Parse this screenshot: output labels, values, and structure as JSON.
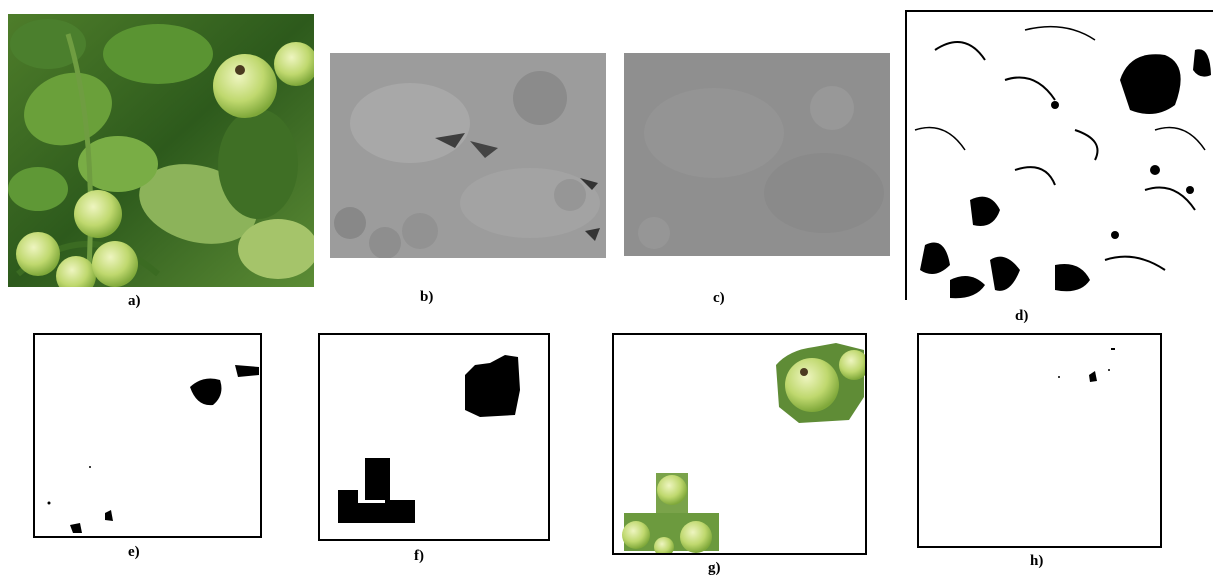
{
  "figure": {
    "panels": [
      {
        "id": "a",
        "caption": "a)",
        "content": "original tomato plant photo"
      },
      {
        "id": "b",
        "caption": "b)",
        "content": "grayscale channel"
      },
      {
        "id": "c",
        "caption": "c)",
        "content": "grayscale channel"
      },
      {
        "id": "d",
        "caption": "d)",
        "content": "binary thresholded image"
      },
      {
        "id": "e",
        "caption": "e)",
        "content": "filtered binary mask"
      },
      {
        "id": "f",
        "caption": "f)",
        "content": "dilated region mask"
      },
      {
        "id": "g",
        "caption": "g)",
        "content": "segmented tomato regions"
      },
      {
        "id": "h",
        "caption": "h)",
        "content": "residual mask"
      }
    ]
  },
  "colors": {
    "leaf_dark": "#2f5a1e",
    "leaf_mid": "#4f8a2c",
    "leaf_light": "#8cc24e",
    "tomato": "#c9dc7a",
    "tomato_hi": "#e8f0b0",
    "gray_b": "#9a9a9a",
    "gray_c": "#8f8f8f",
    "mask": "#000000"
  }
}
